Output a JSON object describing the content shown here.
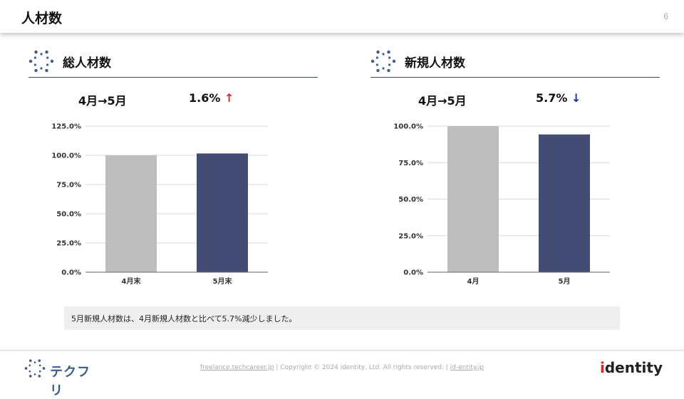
{
  "header": {
    "title": "人材数",
    "page_number": "6"
  },
  "panels": [
    {
      "title": "総人材数",
      "period": "4月→5月",
      "change": "1.6%",
      "arrow": "↑",
      "chart_data": {
        "type": "bar",
        "categories": [
          "4月末",
          "5月末"
        ],
        "values": [
          100.0,
          101.6
        ],
        "ylim": [
          0,
          125
        ],
        "yticks": [
          "0.0%",
          "25.0%",
          "50.0%",
          "75.0%",
          "100.0%",
          "125.0%"
        ],
        "colors": [
          "#bebebe",
          "#434c73"
        ],
        "grid": true
      }
    },
    {
      "title": "新規人材数",
      "period": "4月→5月",
      "change": "5.7%",
      "arrow": "↓",
      "chart_data": {
        "type": "bar",
        "categories": [
          "4月",
          "5月"
        ],
        "values": [
          100.0,
          94.3
        ],
        "ylim": [
          0,
          100
        ],
        "yticks": [
          "0.0%",
          "25.0%",
          "50.0%",
          "75.0%",
          "100.0%"
        ],
        "colors": [
          "#bebebe",
          "#434c73"
        ],
        "grid": true
      }
    }
  ],
  "note": "5月新規人材数は、4月新規人材数と比べて5.7%減少しました。",
  "footer": {
    "logo_text": "テクフリ",
    "link1": "freelance.techcareer.jp",
    "copyright": "| Copyright © 2024 identity, Ltd. All rights reserved. |",
    "link2": "id-entity.jp",
    "brand_pre": "i",
    "brand_rest": "dentity"
  }
}
